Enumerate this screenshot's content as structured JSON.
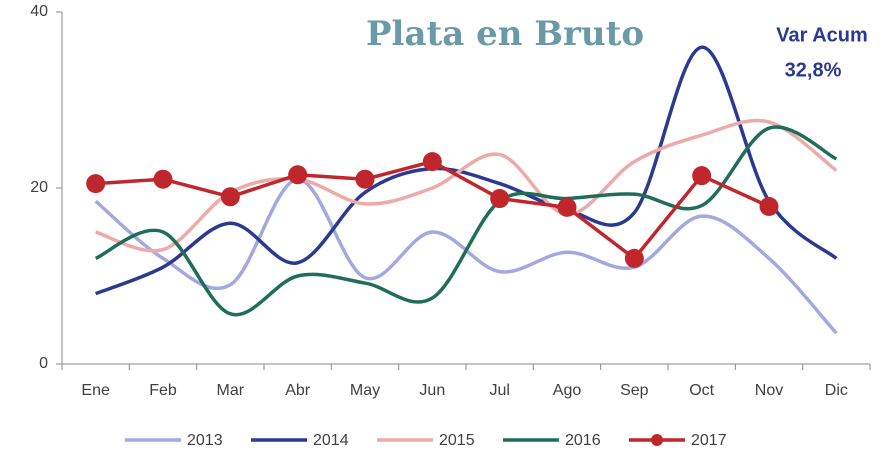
{
  "chart_data": {
    "type": "line",
    "title": "Plata en Bruto",
    "annotations": [
      "Var Acum",
      "32,8%"
    ],
    "categories": [
      "Ene",
      "Feb",
      "Mar",
      "Abr",
      "May",
      "Jun",
      "Jul",
      "Ago",
      "Sep",
      "Oct",
      "Nov",
      "Dic"
    ],
    "ylim": [
      0,
      40
    ],
    "yticks": [
      0,
      20,
      40
    ],
    "grid": false,
    "legend": "bottom",
    "series": [
      {
        "name": "2013",
        "color": "#a3a9e0",
        "smooth": true,
        "markers": false,
        "values": [
          18.5,
          12,
          9,
          21,
          9.8,
          15,
          10.5,
          12.7,
          11,
          16.8,
          12,
          3.5
        ]
      },
      {
        "name": "2014",
        "color": "#2b3990",
        "smooth": true,
        "markers": false,
        "values": [
          8,
          11,
          16,
          11.5,
          19.5,
          22.2,
          20.5,
          17.5,
          17.2,
          36,
          18.5,
          12
        ]
      },
      {
        "name": "2015",
        "color": "#eeaaa8",
        "smooth": true,
        "markers": false,
        "values": [
          15,
          13,
          19.5,
          21,
          18.2,
          20,
          23.8,
          17,
          23,
          26,
          27.5,
          22
        ]
      },
      {
        "name": "2016",
        "color": "#1e6e5a",
        "smooth": true,
        "markers": false,
        "values": [
          12,
          15,
          5.7,
          10,
          9.2,
          7.5,
          18.5,
          18.8,
          19.3,
          18,
          26.8,
          23.3
        ]
      },
      {
        "name": "2017",
        "color": "#c0272d",
        "smooth": false,
        "markers": true,
        "values": [
          20.5,
          21,
          19,
          21.5,
          21,
          23,
          18.8,
          17.8,
          12,
          21.4,
          17.9,
          null
        ]
      }
    ]
  }
}
